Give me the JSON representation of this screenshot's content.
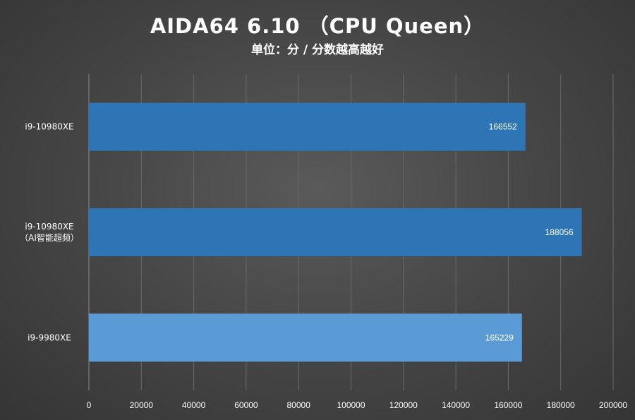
{
  "chart_data": {
    "type": "bar",
    "orientation": "horizontal",
    "title": "AIDA64 6.10 （CPU Queen）",
    "subtitle": "单位：分 / 分数越高越好",
    "categories": [
      [
        "i9-10980XE"
      ],
      [
        "i9-10980XE",
        "（AI智能超频）"
      ],
      [
        "i9-9980XE"
      ]
    ],
    "values": [
      166552,
      188056,
      165229
    ],
    "bar_colors": [
      "#2e75b6",
      "#2e75b6",
      "#5b9bd5"
    ],
    "xlim": [
      0,
      200000
    ],
    "xticks": [
      "0",
      "20000",
      "40000",
      "60000",
      "80000",
      "100000",
      "120000",
      "140000",
      "160000",
      "180000",
      "200000"
    ],
    "grid": true,
    "legend": "none",
    "text_color": "#ffffff",
    "grid_color": "#6a6a6a"
  }
}
